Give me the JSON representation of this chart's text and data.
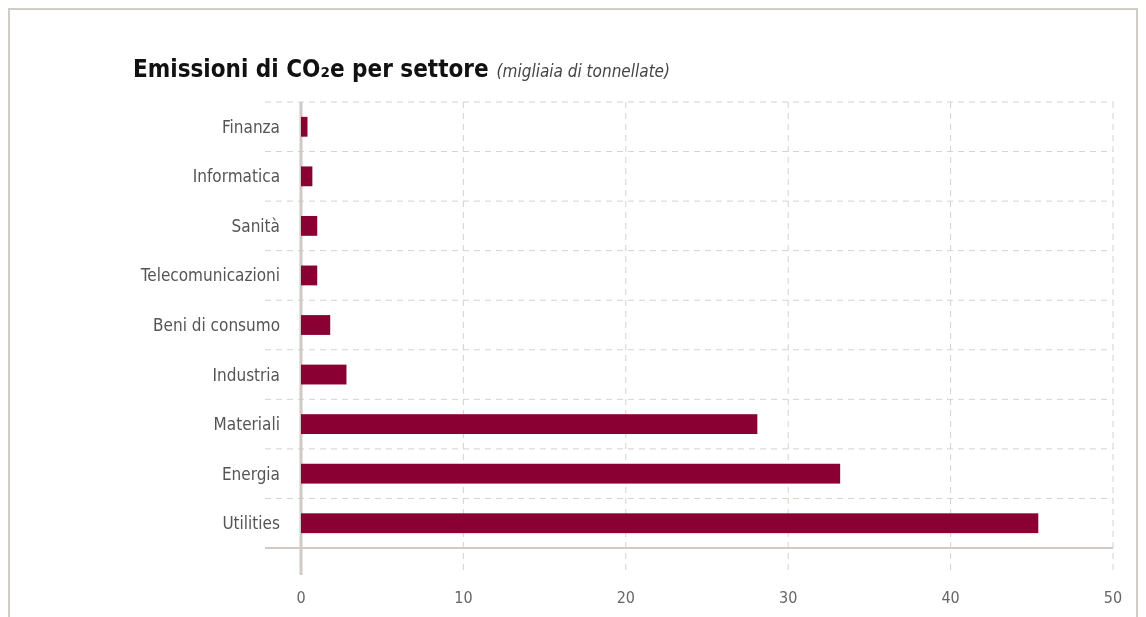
{
  "chart_data": {
    "type": "bar",
    "orientation": "horizontal",
    "title": "Emissioni di CO₂e per settore",
    "subtitle": "(migliaia di tonnellate)",
    "categories": [
      "Finanza",
      "Informatica",
      "Sanità",
      "Telecomunicazioni",
      "Beni di consumo",
      "Industria",
      "Materiali",
      "Energia",
      "Utilities"
    ],
    "values": [
      0.4,
      0.7,
      1.0,
      1.0,
      1.8,
      2.8,
      28.1,
      33.2,
      45.4
    ],
    "color": "#8b0033",
    "xlim": [
      0,
      50
    ],
    "xticks": [
      0,
      10,
      20,
      30,
      40,
      50
    ],
    "grid": true
  }
}
